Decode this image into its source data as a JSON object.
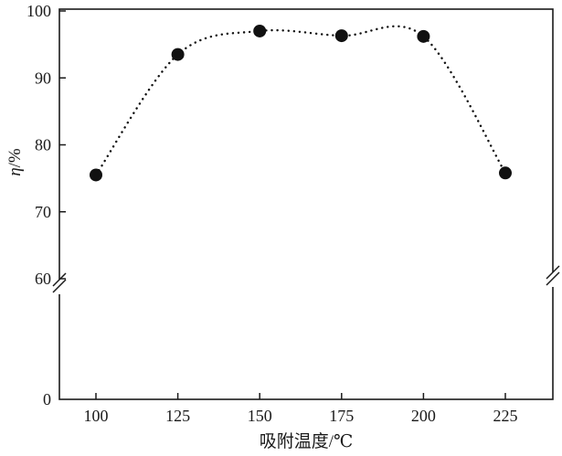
{
  "chart_data": {
    "type": "scatter",
    "title": "",
    "xlabel": "吸附温度/℃",
    "ylabel_prefix": "η",
    "ylabel_suffix": "/%",
    "x": [
      100,
      125,
      150,
      175,
      200,
      225
    ],
    "y": [
      75.5,
      93.5,
      97.0,
      96.3,
      96.2,
      75.8
    ],
    "x_ticks": [
      100,
      125,
      150,
      175,
      200,
      225
    ],
    "y_ticks_upper": [
      60,
      70,
      80,
      90,
      100
    ],
    "y_tick_origin": 0,
    "ylim_upper": [
      60,
      100
    ],
    "axis_break": true,
    "line_style": "dotted",
    "grid": false,
    "legend": "none",
    "marker_color": "#111111",
    "axis_color": "#1a1a1a"
  }
}
